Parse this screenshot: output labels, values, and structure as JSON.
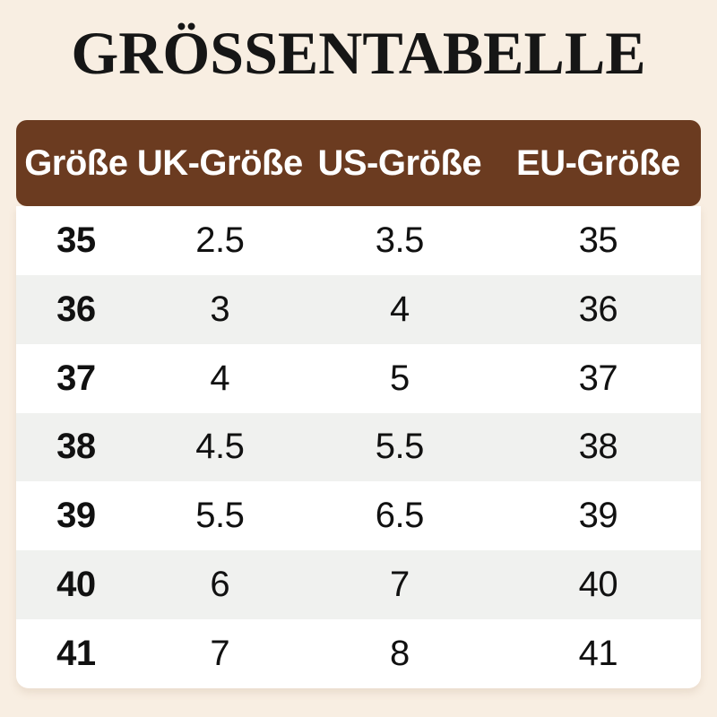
{
  "title": "GRÖSSENTABELLE",
  "colors": {
    "page_bg": "#f8eee2",
    "header_bg": "#6b3b20",
    "header_text": "#ffffff",
    "row_white": "#ffffff",
    "row_gray": "#f0f1ef",
    "text": "#111111"
  },
  "table": {
    "columns": [
      "Größe",
      "UK-Größe",
      "US-Größe",
      "EU-Größe"
    ],
    "rows": [
      [
        "35",
        "2.5",
        "3.5",
        "35"
      ],
      [
        "36",
        "3",
        "4",
        "36"
      ],
      [
        "37",
        "4",
        "5",
        "37"
      ],
      [
        "38",
        "4.5",
        "5.5",
        "38"
      ],
      [
        "39",
        "5.5",
        "6.5",
        "39"
      ],
      [
        "40",
        "6",
        "7",
        "40"
      ],
      [
        "41",
        "7",
        "8",
        "41"
      ]
    ]
  },
  "chart_data": {
    "type": "table",
    "title": "GRÖSSENTABELLE",
    "columns": [
      "Größe",
      "UK-Größe",
      "US-Größe",
      "EU-Größe"
    ],
    "rows": [
      [
        "35",
        "2.5",
        "3.5",
        "35"
      ],
      [
        "36",
        "3",
        "4",
        "36"
      ],
      [
        "37",
        "4",
        "5",
        "37"
      ],
      [
        "38",
        "4.5",
        "5.5",
        "38"
      ],
      [
        "39",
        "5.5",
        "6.5",
        "39"
      ],
      [
        "40",
        "6",
        "7",
        "40"
      ],
      [
        "41",
        "7",
        "8",
        "41"
      ]
    ],
    "layout_hints": {
      "header_style": "brown rounded bar, white bold text",
      "row_striping": [
        "white",
        "light-gray"
      ],
      "first_column_bold": true,
      "alignment": "center"
    }
  }
}
